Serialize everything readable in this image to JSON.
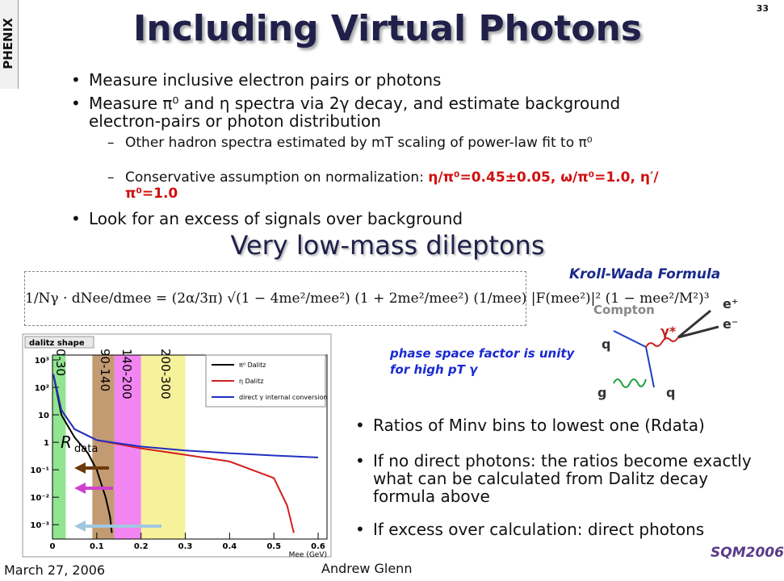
{
  "page_number": "33",
  "logo": "PHENIX",
  "title": "Including Virtual Photons",
  "bullets": [
    "Measure inclusive electron pairs or photons",
    "Measure π⁰ and η spectra via 2γ decay, and estimate background electron-pairs or photon distribution"
  ],
  "sub_bullets": [
    "Other hadron spectra estimated by mT scaling of power-law fit to π⁰",
    {
      "text": "Conservative assumption on normalization: ",
      "highlight": "η/π⁰=0.45±0.05, ω/π⁰=1.0, η′/π⁰=1.0"
    }
  ],
  "last_bullet": "Look for an excess of signals over background",
  "subtitle": "Very low-mass dileptons",
  "formula_name": "Kroll-Wada Formula",
  "formula": "1/Nγ · dNee/dmee = (2α/3π) √(1 − 4me²/mee²) (1 + 2me²/mee²) (1/mee) |F(mee²)|² (1 − mee²/M²)³",
  "diagram": {
    "title": "Compton",
    "labels": [
      "γ*",
      "e⁺",
      "e⁻",
      "q",
      "q",
      "g"
    ]
  },
  "note": "phase space factor is unity for high pT γ",
  "plot": {
    "title": "dalitz shape",
    "xlabel": "Mee (GeV)",
    "xlim": [
      0,
      0.62
    ],
    "xticks": [
      0,
      0.1,
      0.2,
      0.3,
      0.4,
      0.5,
      0.6
    ],
    "ylim": [
      0.0003,
      1500
    ],
    "log_y": true,
    "yticks": [
      {
        "value": 0.001,
        "label": "10⁻³"
      },
      {
        "value": 0.01,
        "label": "10⁻²"
      },
      {
        "value": 0.1,
        "label": "10⁻¹"
      },
      {
        "value": 1,
        "label": "1"
      },
      {
        "value": 10,
        "label": "10"
      },
      {
        "value": 100,
        "label": "10²"
      },
      {
        "value": 1000,
        "label": "10³"
      }
    ],
    "series": [
      {
        "name": "π⁰ Dalitz",
        "color": "#000000",
        "x": [
          0.002,
          0.02,
          0.05,
          0.08,
          0.1,
          0.12,
          0.13,
          0.134
        ],
        "values": [
          300,
          10,
          1.5,
          0.4,
          0.1,
          0.01,
          0.002,
          0.0005
        ]
      },
      {
        "name": "η Dalitz",
        "color": "#d42020",
        "x": [
          0.002,
          0.02,
          0.05,
          0.1,
          0.2,
          0.3,
          0.4,
          0.5,
          0.53,
          0.545
        ],
        "values": [
          300,
          15,
          3,
          1.2,
          0.6,
          0.35,
          0.2,
          0.05,
          0.005,
          0.0005
        ]
      },
      {
        "name": "direct γ internal conversion",
        "color": "#2030c0",
        "x": [
          0.002,
          0.02,
          0.05,
          0.1,
          0.2,
          0.3,
          0.4,
          0.5,
          0.6
        ],
        "values": [
          300,
          15,
          3,
          1.2,
          0.7,
          0.5,
          0.4,
          0.33,
          0.28
        ]
      }
    ],
    "bands": [
      {
        "label": "0-30",
        "range": [
          0,
          0.03
        ],
        "color": "#7ee07e"
      },
      {
        "label": "90-140",
        "range": [
          0.09,
          0.14
        ],
        "color": "#b88a5a"
      },
      {
        "label": "140-200",
        "range": [
          0.14,
          0.2
        ],
        "color": "#f070f0"
      },
      {
        "label": "200-300",
        "range": [
          0.2,
          0.3
        ],
        "color": "#f4f08a"
      }
    ],
    "rdata": {
      "main": "R",
      "sub": "data"
    }
  },
  "right_bullets": [
    "Ratios of Minv bins to lowest one (Rdata)",
    "If no direct photons: the ratios become exactly what can be calculated from Dalitz decay formula above",
    "If excess over calculation: direct photons"
  ],
  "footer": {
    "date": "March 27, 2006",
    "author": "Andrew Glenn",
    "logo": "SQM2006"
  }
}
